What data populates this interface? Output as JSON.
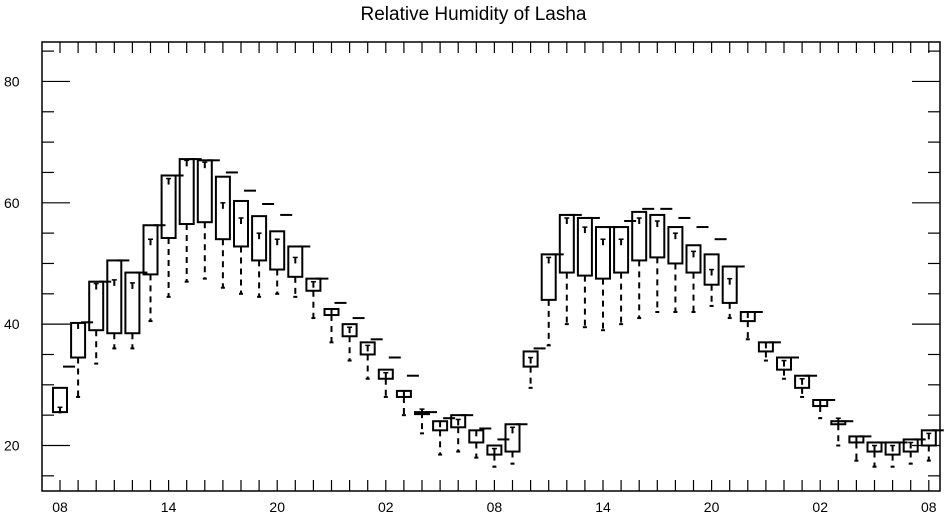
{
  "chart_data": {
    "type": "box",
    "title": "Relative Humidity of Lasha",
    "xlabel": "",
    "ylabel": "",
    "ylim": [
      12.5,
      86.5
    ],
    "y_ticks": [
      20,
      40,
      60,
      80
    ],
    "x_ticks": [
      {
        "slot": 0,
        "label": "08"
      },
      {
        "slot": 6,
        "label": "14"
      },
      {
        "slot": 12,
        "label": "20"
      },
      {
        "slot": 18,
        "label": "02"
      },
      {
        "slot": 24,
        "label": "08"
      },
      {
        "slot": 30,
        "label": "14"
      },
      {
        "slot": 36,
        "label": "20"
      },
      {
        "slot": 42,
        "label": "02"
      },
      {
        "slot": 48,
        "label": "08"
      }
    ],
    "grid": false,
    "legend": "none",
    "boxes": [
      {
        "slot": 0,
        "min": 25.5,
        "q1": 25.5,
        "median": 25.8,
        "q3": 29.5,
        "max": 33
      },
      {
        "slot": 1,
        "min": 28,
        "q1": 34.5,
        "median": 39.7,
        "q3": 40.2,
        "max": 40.3
      },
      {
        "slot": 2,
        "min": 33.5,
        "q1": 39,
        "median": 46.2,
        "q3": 47,
        "max": 47
      },
      {
        "slot": 3,
        "min": 36,
        "q1": 38.5,
        "median": 46.8,
        "q3": 50.5,
        "max": 50.5
      },
      {
        "slot": 4,
        "min": 36,
        "q1": 38.5,
        "median": 46.3,
        "q3": 48.5,
        "max": 48.5
      },
      {
        "slot": 5,
        "min": 40.5,
        "q1": 48.2,
        "median": 53.5,
        "q3": 56.3,
        "max": 56.3
      },
      {
        "slot": 6,
        "min": 44.5,
        "q1": 54.2,
        "median": 63.5,
        "q3": 64.5,
        "max": 64.5
      },
      {
        "slot": 7,
        "min": 47,
        "q1": 56.5,
        "median": 66.5,
        "q3": 67.2,
        "max": 67.2
      },
      {
        "slot": 8,
        "min": 47.5,
        "q1": 56.8,
        "median": 66.2,
        "q3": 67,
        "max": 67
      },
      {
        "slot": 9,
        "min": 46,
        "q1": 54,
        "median": 59.5,
        "q3": 64.3,
        "max": 65
      },
      {
        "slot": 10,
        "min": 45,
        "q1": 52.8,
        "median": 57,
        "q3": 60.3,
        "max": 62
      },
      {
        "slot": 11,
        "min": 44.5,
        "q1": 50.5,
        "median": 54.5,
        "q3": 57.8,
        "max": 59.8
      },
      {
        "slot": 12,
        "min": 45,
        "q1": 49,
        "median": 53.5,
        "q3": 55.3,
        "max": 58
      },
      {
        "slot": 13,
        "min": 44.5,
        "q1": 47.8,
        "median": 50.5,
        "q3": 52.8,
        "max": 52.8
      },
      {
        "slot": 14,
        "min": 41,
        "q1": 45.5,
        "median": 46.5,
        "q3": 47.5,
        "max": 47.5
      },
      {
        "slot": 15,
        "min": 37,
        "q1": 41.5,
        "median": 42,
        "q3": 42.5,
        "max": 43.5
      },
      {
        "slot": 16,
        "min": 34,
        "q1": 38,
        "median": 39,
        "q3": 40,
        "max": 41
      },
      {
        "slot": 17,
        "min": 31,
        "q1": 35,
        "median": 36,
        "q3": 37,
        "max": 37.5
      },
      {
        "slot": 18,
        "min": 28,
        "q1": 31,
        "median": 31.5,
        "q3": 32.5,
        "max": 34.5
      },
      {
        "slot": 19,
        "min": 25,
        "q1": 28,
        "median": 28.5,
        "q3": 29,
        "max": 31.5
      },
      {
        "slot": 20,
        "min": 22,
        "q1": 25.5,
        "median": 25.5,
        "q3": 25.5,
        "max": 25.5
      },
      {
        "slot": 21,
        "min": 18.5,
        "q1": 22.5,
        "median": 23.5,
        "q3": 24,
        "max": 24.5
      },
      {
        "slot": 22,
        "min": 19,
        "q1": 23,
        "median": 23.8,
        "q3": 25,
        "max": 25
      },
      {
        "slot": 23,
        "min": 18,
        "q1": 20.5,
        "median": 22,
        "q3": 22.5,
        "max": 22.8
      },
      {
        "slot": 24,
        "min": 16.5,
        "q1": 18.5,
        "median": 19,
        "q3": 20,
        "max": 21
      },
      {
        "slot": 25,
        "min": 17,
        "q1": 19,
        "median": 22.5,
        "q3": 23.5,
        "max": 23.5
      },
      {
        "slot": 26,
        "min": 29.5,
        "q1": 33,
        "median": 34,
        "q3": 35.5,
        "max": 36
      },
      {
        "slot": 27,
        "min": 36.5,
        "q1": 44,
        "median": 50.5,
        "q3": 51.5,
        "max": 51.5
      },
      {
        "slot": 28,
        "min": 40,
        "q1": 48.5,
        "median": 57,
        "q3": 58,
        "max": 58
      },
      {
        "slot": 29,
        "min": 39.5,
        "q1": 48,
        "median": 55.5,
        "q3": 57.5,
        "max": 57.5
      },
      {
        "slot": 30,
        "min": 39,
        "q1": 47.5,
        "median": 53.5,
        "q3": 56,
        "max": 56
      },
      {
        "slot": 31,
        "min": 40,
        "q1": 48.5,
        "median": 53.5,
        "q3": 56,
        "max": 57
      },
      {
        "slot": 32,
        "min": 41,
        "q1": 50.5,
        "median": 57,
        "q3": 58.5,
        "max": 59
      },
      {
        "slot": 33,
        "min": 42,
        "q1": 51,
        "median": 56.5,
        "q3": 58,
        "max": 59
      },
      {
        "slot": 34,
        "min": 42,
        "q1": 50,
        "median": 54.5,
        "q3": 56,
        "max": 57.5
      },
      {
        "slot": 35,
        "min": 42,
        "q1": 48.5,
        "median": 51.5,
        "q3": 53,
        "max": 56
      },
      {
        "slot": 36,
        "min": 43,
        "q1": 46.5,
        "median": 48.5,
        "q3": 51.5,
        "max": 54
      },
      {
        "slot": 37,
        "min": 41,
        "q1": 43.5,
        "median": 47,
        "q3": 49.5,
        "max": 49.5
      },
      {
        "slot": 38,
        "min": 37.5,
        "q1": 40.5,
        "median": 41.5,
        "q3": 42,
        "max": 42
      },
      {
        "slot": 39,
        "min": 34,
        "q1": 35.5,
        "median": 36.5,
        "q3": 37,
        "max": 37
      },
      {
        "slot": 40,
        "min": 31,
        "q1": 32.5,
        "median": 33.5,
        "q3": 34.5,
        "max": 34.5
      },
      {
        "slot": 41,
        "min": 28,
        "q1": 29.5,
        "median": 30.5,
        "q3": 31.5,
        "max": 31.5
      },
      {
        "slot": 42,
        "min": 24.5,
        "q1": 26.5,
        "median": 27,
        "q3": 27.5,
        "max": 27.5
      },
      {
        "slot": 43,
        "min": 20,
        "q1": 23.5,
        "median": 24,
        "q3": 24,
        "max": 24
      },
      {
        "slot": 44,
        "min": 17.5,
        "q1": 20.5,
        "median": 21,
        "q3": 21.5,
        "max": 21.5
      },
      {
        "slot": 45,
        "min": 16.5,
        "q1": 19,
        "median": 19.5,
        "q3": 20.5,
        "max": 20.5
      },
      {
        "slot": 46,
        "min": 16.5,
        "q1": 18.5,
        "median": 19.5,
        "q3": 20.5,
        "max": 20.5
      },
      {
        "slot": 47,
        "min": 17,
        "q1": 19,
        "median": 20,
        "q3": 21,
        "max": 21
      },
      {
        "slot": 48,
        "min": 17.5,
        "q1": 20,
        "median": 21.5,
        "q3": 22.5,
        "max": 22.5
      }
    ]
  }
}
